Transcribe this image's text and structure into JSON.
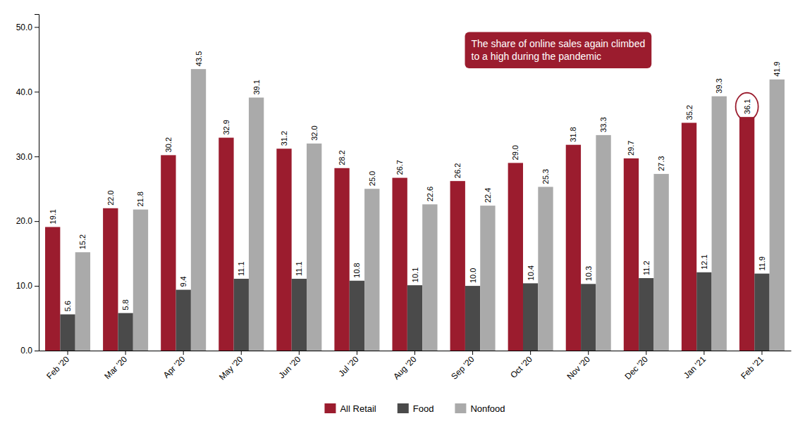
{
  "chart_data": {
    "type": "bar",
    "categories": [
      "Feb '20",
      "Mar '20",
      "Apr '20",
      "May '20",
      "Jun '20",
      "Jul '20",
      "Aug '20",
      "Sep '20",
      "Oct '20",
      "Nov '20",
      "Dec '20",
      "Jan '21",
      "Feb '21"
    ],
    "series": [
      {
        "name": "All Retail",
        "color": "#9b1c2e",
        "values": [
          19.1,
          22.0,
          30.2,
          32.9,
          31.2,
          28.2,
          26.7,
          26.2,
          29.0,
          31.8,
          29.7,
          35.2,
          36.1
        ],
        "value_labels": [
          "19.1",
          "22.0",
          "30.2",
          "32.9",
          "31.2",
          "28.2",
          "26.7",
          "26.2",
          "29.0",
          "31.8",
          "29.7",
          "35.2",
          "36.1"
        ]
      },
      {
        "name": "Food",
        "color": "#4a4a4a",
        "values": [
          5.6,
          5.8,
          9.4,
          11.1,
          11.1,
          10.8,
          10.1,
          10.0,
          10.4,
          10.3,
          11.2,
          12.1,
          11.9
        ],
        "value_labels": [
          "5.6",
          "5.8",
          "9.4",
          "11.1",
          "11.1",
          "10.8",
          "10.1",
          "10.0",
          "10.4",
          "10.3",
          "11.2",
          "12.1",
          "11.9"
        ]
      },
      {
        "name": "Nonfood",
        "color": "#aaaaaa",
        "values": [
          15.2,
          21.8,
          43.5,
          39.1,
          32.0,
          25.0,
          22.6,
          22.4,
          25.3,
          33.3,
          27.3,
          39.3,
          41.9
        ],
        "value_labels": [
          "15.2",
          "21.8",
          "43.5",
          "39.1",
          "32.0",
          "25.0",
          "22.6",
          "22.4",
          "25.3",
          "33.3",
          "27.3",
          "39.3",
          "41.9"
        ]
      }
    ],
    "annotation": "The share of online sales again climbed\nto a high during the pandemic",
    "ylim": [
      0,
      52
    ],
    "yticks": [
      {
        "value": 0,
        "label": "0.0"
      },
      {
        "value": 10,
        "label": "10.0"
      },
      {
        "value": 20,
        "label": "20.0"
      },
      {
        "value": 30,
        "label": "30.0"
      },
      {
        "value": 40,
        "label": "40.0"
      },
      {
        "value": 50,
        "label": "50.0"
      }
    ],
    "grid": false,
    "legend": "bottom",
    "data_labels": true
  }
}
